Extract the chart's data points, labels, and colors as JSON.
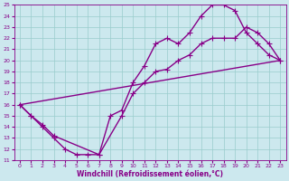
{
  "xlabel": "Windchill (Refroidissement éolien,°C)",
  "bg_color": "#cce8ee",
  "line_color": "#880088",
  "grid_color": "#99cccc",
  "xlim": [
    -0.5,
    23.5
  ],
  "ylim": [
    11,
    25
  ],
  "xticks": [
    0,
    1,
    2,
    3,
    4,
    5,
    6,
    7,
    8,
    9,
    10,
    11,
    12,
    13,
    14,
    15,
    16,
    17,
    18,
    19,
    20,
    21,
    22,
    23
  ],
  "yticks": [
    11,
    12,
    13,
    14,
    15,
    16,
    17,
    18,
    19,
    20,
    21,
    22,
    23,
    24,
    25
  ],
  "line1_x": [
    0,
    1,
    2,
    3,
    4,
    5,
    6,
    7,
    8,
    9,
    10,
    11,
    12,
    13,
    14,
    15,
    16,
    17,
    18,
    19,
    20,
    21,
    22,
    23
  ],
  "line1_y": [
    16,
    15,
    14,
    13,
    12,
    11.5,
    11.5,
    11.5,
    15.0,
    15.5,
    18.0,
    19.5,
    21.5,
    22.0,
    21.5,
    22.5,
    24.0,
    25.0,
    25.0,
    24.5,
    22.5,
    21.5,
    20.5,
    20.0
  ],
  "line2_x": [
    0,
    1,
    2,
    3,
    7,
    9,
    10,
    11,
    12,
    13,
    14,
    15,
    16,
    17,
    18,
    19,
    20,
    21,
    22,
    23
  ],
  "line2_y": [
    16,
    15,
    14.2,
    13.2,
    11.5,
    15.0,
    17.0,
    18.0,
    19.0,
    19.2,
    20.0,
    20.5,
    21.5,
    22.0,
    22.0,
    22.0,
    23.0,
    22.5,
    21.5,
    20.0
  ],
  "line3_x": [
    0,
    23
  ],
  "line3_y": [
    16,
    20
  ],
  "marker": "+",
  "markersize": 4,
  "linewidth": 1.0
}
